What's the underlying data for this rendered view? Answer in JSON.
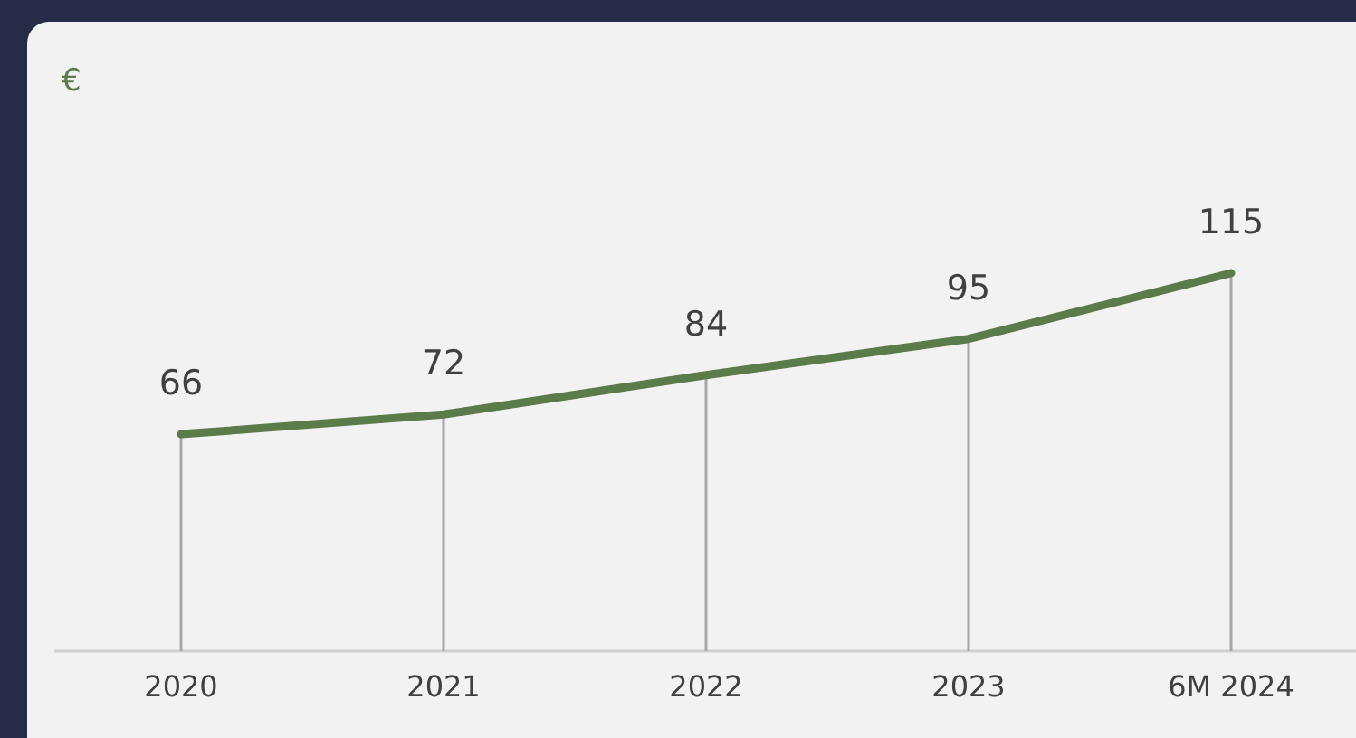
{
  "chart_data": {
    "type": "line",
    "annotations": [
      "€"
    ],
    "categories": [
      "2020",
      "2021",
      "2022",
      "2023",
      "6M 2024"
    ],
    "series": [
      {
        "color": "#5b7b4b",
        "values": [
          66,
          72,
          84,
          95,
          115
        ]
      }
    ],
    "data_labels": true,
    "grid": "x",
    "marker": "none",
    "line_style": "solid"
  }
}
